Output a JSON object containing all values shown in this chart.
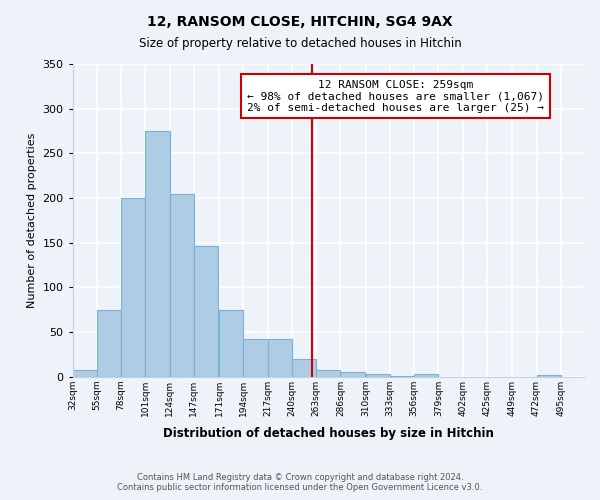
{
  "title": "12, RANSOM CLOSE, HITCHIN, SG4 9AX",
  "subtitle": "Size of property relative to detached houses in Hitchin",
  "xlabel": "Distribution of detached houses by size in Hitchin",
  "ylabel": "Number of detached properties",
  "bar_left_edges": [
    32,
    55,
    78,
    101,
    124,
    147,
    171,
    194,
    217,
    240,
    263,
    286,
    310,
    333,
    356,
    379,
    402,
    425,
    449,
    472
  ],
  "bar_heights": [
    7,
    75,
    200,
    275,
    204,
    146,
    75,
    42,
    42,
    20,
    7,
    5,
    3,
    1,
    3,
    0,
    0,
    0,
    0,
    2
  ],
  "tick_labels": [
    "32sqm",
    "55sqm",
    "78sqm",
    "101sqm",
    "124sqm",
    "147sqm",
    "171sqm",
    "194sqm",
    "217sqm",
    "240sqm",
    "263sqm",
    "286sqm",
    "310sqm",
    "333sqm",
    "356sqm",
    "379sqm",
    "402sqm",
    "425sqm",
    "449sqm",
    "472sqm",
    "495sqm"
  ],
  "bar_color": "#aecce4",
  "bar_edge_color": "#7ab0d4",
  "property_line_x": 259,
  "property_line_color": "#cc0000",
  "annotation_title": "12 RANSOM CLOSE: 259sqm",
  "annotation_line1": "← 98% of detached houses are smaller (1,067)",
  "annotation_line2": "2% of semi-detached houses are larger (25) →",
  "annotation_box_color": "#ffffff",
  "annotation_box_edge_color": "#cc0000",
  "ylim": [
    0,
    350
  ],
  "yticks": [
    0,
    50,
    100,
    150,
    200,
    250,
    300,
    350
  ],
  "footer_line1": "Contains HM Land Registry data © Crown copyright and database right 2024.",
  "footer_line2": "Contains public sector information licensed under the Open Government Licence v3.0.",
  "background_color": "#eef2f9",
  "grid_color": "#ffffff",
  "spine_color": "#c8d0e0"
}
